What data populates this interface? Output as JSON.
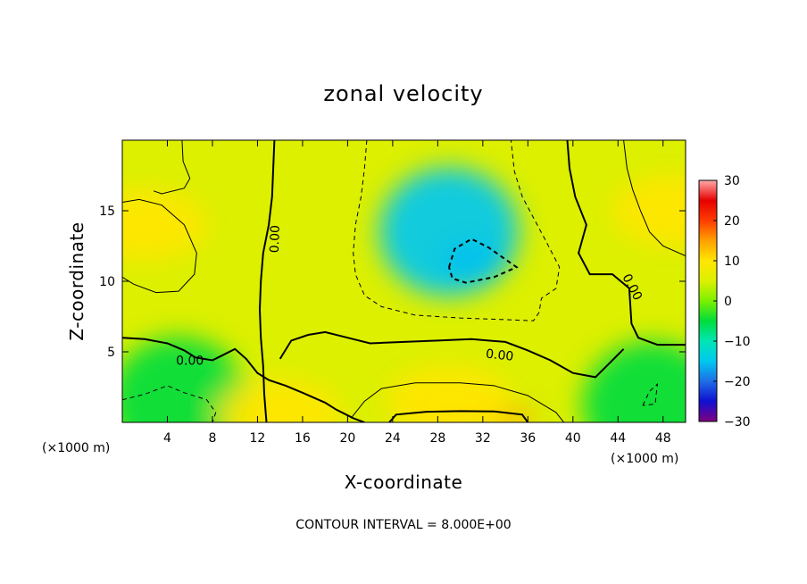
{
  "chart_data": {
    "type": "heatmap",
    "title": "zonal velocity",
    "xlabel": "X-coordinate",
    "ylabel": "Z-coordinate",
    "x_unit": "(×1000 m)",
    "y_unit": "(×1000 m)",
    "xlim": [
      0,
      50
    ],
    "ylim": [
      0,
      20
    ],
    "x_ticks": [
      4,
      8,
      12,
      16,
      20,
      24,
      28,
      32,
      36,
      40,
      44,
      48
    ],
    "y_ticks": [
      5,
      10,
      15
    ],
    "colorbar": {
      "min": -30,
      "max": 30,
      "ticks": [
        30,
        20,
        10,
        0,
        -10,
        -20,
        -30
      ],
      "tick_labels": [
        "30",
        "20",
        "10",
        "0",
        "−10",
        "−20",
        "−30"
      ],
      "colors": [
        "#800080",
        "#1010d0",
        "#1e6ee6",
        "#00c8f0",
        "#00e6b4",
        "#00dc3c",
        "#7cf000",
        "#dcf000",
        "#ffe600",
        "#ffa000",
        "#ff3c00",
        "#e60000",
        "#ffaaaa"
      ]
    },
    "contour_label": "0.00",
    "contour_interval_note": "CONTOUR INTERVAL = 8.000E+00",
    "field": {
      "background": 5,
      "features": [
        {
          "kind": "negative_core",
          "x": 31,
          "z": 11.5,
          "value": -22
        },
        {
          "kind": "negative_region",
          "x": 29,
          "z": 13.5,
          "value": -14
        },
        {
          "kind": "negative_region",
          "x": 5,
          "z": 1.5,
          "value": -6
        },
        {
          "kind": "negative_region",
          "x": 47,
          "z": 1.2,
          "value": -6
        },
        {
          "kind": "positive_core",
          "x": 31,
          "z": 0.3,
          "value": 17
        },
        {
          "kind": "positive_region",
          "x": 29,
          "z": 1.5,
          "value": 12
        },
        {
          "kind": "positive_region",
          "x": 2,
          "z": 14,
          "value": 12
        },
        {
          "kind": "positive_region",
          "x": 49,
          "z": 15,
          "value": 11
        },
        {
          "kind": "positive_region",
          "x": 14,
          "z": 0.5,
          "value": 9
        }
      ]
    },
    "zero_contours": [
      {
        "name": "zero-contour-left-vertical",
        "points": [
          [
            12.8,
            0
          ],
          [
            12.6,
            2
          ],
          [
            12.5,
            4
          ],
          [
            12.3,
            6
          ],
          [
            12.2,
            8
          ],
          [
            12.3,
            10
          ],
          [
            12.5,
            12
          ],
          [
            13,
            14
          ],
          [
            13.3,
            16
          ],
          [
            13.4,
            18
          ],
          [
            13.5,
            20
          ]
        ]
      },
      {
        "name": "zero-contour-lower",
        "points": [
          [
            0,
            6
          ],
          [
            2,
            5.9
          ],
          [
            4,
            5.6
          ],
          [
            5.5,
            5.1
          ],
          [
            6.5,
            4.6
          ],
          [
            8,
            4.4
          ],
          [
            9,
            4.8
          ],
          [
            10,
            5.2
          ],
          [
            11,
            4.5
          ],
          [
            12,
            3.5
          ],
          [
            13,
            3
          ],
          [
            14.5,
            2.6
          ],
          [
            16,
            2.1
          ],
          [
            18,
            1.4
          ],
          [
            19,
            0.9
          ],
          [
            20.5,
            0.3
          ],
          [
            21.5,
            0
          ]
        ]
      },
      {
        "name": "zero-contour-mid",
        "points": [
          [
            14,
            4.5
          ],
          [
            15,
            5.8
          ],
          [
            16.5,
            6.2
          ],
          [
            18,
            6.4
          ],
          [
            20,
            6
          ],
          [
            22,
            5.6
          ],
          [
            25,
            5.7
          ],
          [
            28,
            5.8
          ],
          [
            31,
            5.9
          ],
          [
            34,
            5.7
          ],
          [
            36,
            5.1
          ],
          [
            38,
            4.4
          ],
          [
            40,
            3.5
          ],
          [
            42,
            3.2
          ],
          [
            43.5,
            4.4
          ],
          [
            44.5,
            5.2
          ]
        ]
      },
      {
        "name": "zero-contour-right",
        "points": [
          [
            39.5,
            20
          ],
          [
            39.7,
            18
          ],
          [
            40.2,
            16
          ],
          [
            41.2,
            14
          ],
          [
            40.5,
            12
          ],
          [
            41.5,
            10.5
          ],
          [
            43.5,
            10.5
          ],
          [
            45,
            9.5
          ],
          [
            45.2,
            7
          ],
          [
            45.8,
            6
          ],
          [
            47.5,
            5.5
          ],
          [
            50,
            5.5
          ]
        ]
      }
    ],
    "dashed_contours": [
      {
        "name": "negative-contour-outer",
        "points": [
          [
            21.7,
            20
          ],
          [
            21.5,
            18
          ],
          [
            21.2,
            16
          ],
          [
            20.7,
            14
          ],
          [
            20.5,
            12
          ],
          [
            20.7,
            10.5
          ],
          [
            21.5,
            9
          ],
          [
            23,
            8.2
          ],
          [
            26,
            7.6
          ],
          [
            30,
            7.4
          ],
          [
            33.5,
            7.3
          ],
          [
            36.5,
            7.2
          ],
          [
            37,
            7.8
          ],
          [
            37.2,
            8.8
          ],
          [
            38.5,
            9.5
          ],
          [
            38.8,
            11
          ],
          [
            37.5,
            13
          ],
          [
            36.5,
            14.5
          ],
          [
            35.5,
            16
          ],
          [
            34.8,
            17.8
          ],
          [
            34.5,
            20
          ]
        ]
      },
      {
        "name": "negative-contour-inner",
        "points": [
          [
            29,
            11
          ],
          [
            29.5,
            12.3
          ],
          [
            31,
            13
          ],
          [
            32.5,
            12.4
          ],
          [
            35,
            11
          ],
          [
            33,
            10.3
          ],
          [
            30.5,
            9.9
          ],
          [
            29.3,
            10.2
          ],
          [
            29,
            11
          ]
        ]
      },
      {
        "name": "negative-contour-left-bottom",
        "points": [
          [
            0,
            1.6
          ],
          [
            2,
            2
          ],
          [
            4,
            2.6
          ],
          [
            5.5,
            2.1
          ],
          [
            7.5,
            1.6
          ],
          [
            8.3,
            0.7
          ],
          [
            8,
            0
          ]
        ]
      },
      {
        "name": "negative-contour-right-bottom",
        "points": [
          [
            46.2,
            1.2
          ],
          [
            46.8,
            2.2
          ],
          [
            47.5,
            2.7
          ],
          [
            47.3,
            1.3
          ],
          [
            46.2,
            1.2
          ]
        ]
      }
    ],
    "thin_contours": [
      {
        "name": "thin-contour-upper-left",
        "points": [
          [
            0,
            15.6
          ],
          [
            1.5,
            15.8
          ],
          [
            3.5,
            15.4
          ],
          [
            5.5,
            14
          ],
          [
            6.6,
            12
          ],
          [
            6.4,
            10.5
          ],
          [
            5,
            9.3
          ],
          [
            3,
            9.2
          ],
          [
            1,
            9.8
          ],
          [
            0,
            10.3
          ]
        ]
      },
      {
        "name": "thin-contour-upper-right",
        "points": [
          [
            44.5,
            20
          ],
          [
            44.8,
            18
          ],
          [
            45.3,
            16.5
          ],
          [
            46,
            15
          ],
          [
            46.8,
            13.5
          ],
          [
            48,
            12.5
          ],
          [
            50,
            11.8
          ]
        ]
      },
      {
        "name": "thin-contour-top-left",
        "points": [
          [
            5.3,
            20
          ],
          [
            5.4,
            18.5
          ],
          [
            6,
            17.3
          ],
          [
            5.5,
            16.6
          ],
          [
            3.5,
            16.2
          ],
          [
            2.8,
            16.4
          ]
        ]
      },
      {
        "name": "thin-contour-bottom-positive",
        "points": [
          [
            20.3,
            0.3
          ],
          [
            21.5,
            1.5
          ],
          [
            23,
            2.4
          ],
          [
            26,
            2.8
          ],
          [
            30,
            2.8
          ],
          [
            33,
            2.6
          ],
          [
            36,
            1.9
          ],
          [
            38.5,
            0.7
          ],
          [
            39.2,
            0
          ]
        ]
      }
    ],
    "thick_contours": [
      {
        "name": "positive-contour-bottom-16",
        "points": [
          [
            23.7,
            0
          ],
          [
            24.3,
            0.55
          ],
          [
            27,
            0.75
          ],
          [
            30,
            0.8
          ],
          [
            33,
            0.78
          ],
          [
            35.5,
            0.55
          ],
          [
            36,
            0
          ]
        ]
      }
    ],
    "contour_label_positions": [
      {
        "x": 13.5,
        "z": 13,
        "angle": -88
      },
      {
        "x": 6,
        "z": 4.4,
        "angle": 0
      },
      {
        "x": 33.5,
        "z": 4.8,
        "angle": 6
      },
      {
        "x": 45.3,
        "z": 9.6,
        "angle": 62
      }
    ]
  }
}
